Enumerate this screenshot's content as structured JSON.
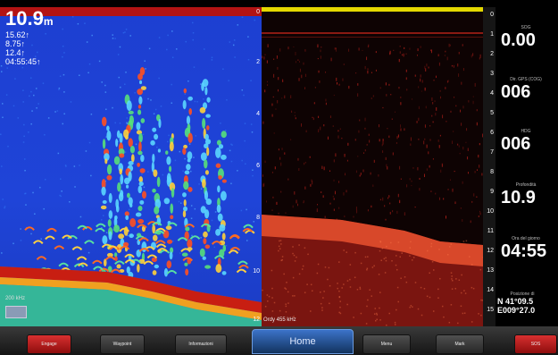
{
  "left_panel": {
    "depth_value": "10.9",
    "depth_unit": "m",
    "info_lines": [
      "15.62↑",
      "8.75↑",
      "12.4↑",
      "04:55:45↑"
    ],
    "scale_labels": [
      "0",
      "2",
      "4",
      "6",
      "8",
      "10",
      "12"
    ],
    "frequency_label": "200 kHz",
    "colors": {
      "water": "#1f44d8",
      "top_bar": "#b31313",
      "bottom": "#c81e12"
    }
  },
  "right_panel": {
    "scale_labels": [
      "0",
      "1",
      "2",
      "3",
      "4",
      "5",
      "6",
      "7",
      "8",
      "9",
      "10",
      "11",
      "12",
      "13",
      "14",
      "15"
    ],
    "range_label": "Ordy 455 kHz",
    "colors": {
      "top_bar": "#e4d800",
      "bottom": "#c0321c"
    }
  },
  "sidebar": {
    "fields": [
      {
        "label": "SOG",
        "value": "0.00"
      },
      {
        "label": "Dir. GPS (COG)",
        "value": "006"
      },
      {
        "label": "HDG",
        "value": "006"
      },
      {
        "label": "Profondità",
        "value": "10.9"
      },
      {
        "label": "Ora del giorno",
        "value": "04:55"
      },
      {
        "label": "Posizione di",
        "value": "N 41°09.5",
        "value2": "E009°27.0"
      }
    ]
  },
  "toolbar": {
    "buttons": [
      "Engage",
      "Waypoint",
      "Informazioni",
      "Home",
      "Menu",
      "Mark",
      "SOS"
    ]
  }
}
